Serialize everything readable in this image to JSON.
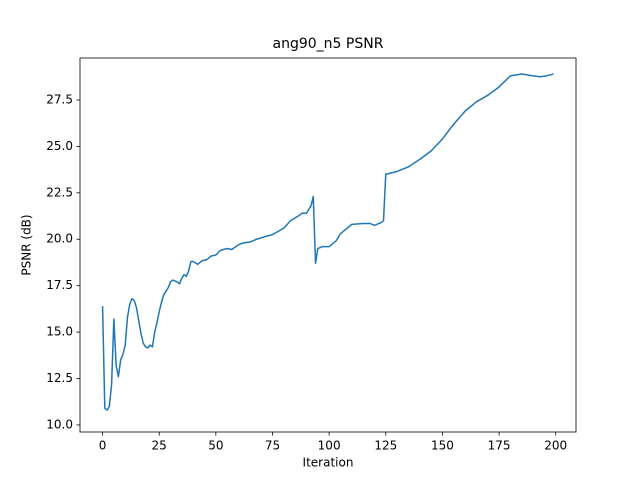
{
  "chart_data": {
    "type": "line",
    "title": "ang90_n5 PSNR",
    "x_label": "Iteration",
    "y_label": "PSNR (dB)",
    "x": [
      0,
      1,
      2,
      3,
      4,
      5,
      6,
      7,
      8,
      9,
      10,
      11,
      12,
      13,
      14,
      15,
      16,
      17,
      18,
      19,
      20,
      21,
      22,
      23,
      24,
      25,
      26,
      27,
      28,
      29,
      30,
      31,
      32,
      33,
      34,
      35,
      36,
      37,
      38,
      39,
      40,
      42,
      44,
      46,
      48,
      50,
      52,
      55,
      57,
      60,
      62,
      65,
      68,
      72,
      75,
      80,
      83,
      87,
      88,
      90,
      92,
      93,
      94,
      95,
      97,
      100,
      103,
      105,
      107,
      110,
      115,
      118,
      120,
      123,
      124,
      125,
      130,
      135,
      140,
      145,
      150,
      155,
      160,
      165,
      170,
      175,
      180,
      185,
      190,
      193,
      196,
      199
    ],
    "series": [
      {
        "name": "PSNR",
        "color": "#1f77b4",
        "values": [
          16.4,
          10.9,
          10.8,
          11.0,
          12.2,
          15.7,
          13.2,
          12.6,
          13.5,
          13.8,
          14.3,
          15.8,
          16.5,
          16.8,
          16.7,
          16.3,
          15.6,
          14.9,
          14.4,
          14.2,
          14.15,
          14.3,
          14.2,
          15.0,
          15.5,
          16.1,
          16.6,
          17.0,
          17.2,
          17.4,
          17.7,
          17.8,
          17.75,
          17.7,
          17.6,
          17.9,
          18.1,
          18.0,
          18.3,
          18.8,
          18.8,
          18.65,
          18.85,
          18.9,
          19.1,
          19.15,
          19.4,
          19.5,
          19.45,
          19.7,
          19.8,
          19.85,
          20.0,
          20.15,
          20.25,
          20.6,
          21.0,
          21.3,
          21.4,
          21.4,
          21.8,
          22.3,
          18.7,
          19.5,
          19.6,
          19.6,
          19.9,
          20.3,
          20.5,
          20.8,
          20.85,
          20.85,
          20.75,
          20.9,
          21.0,
          23.5,
          23.65,
          23.9,
          24.3,
          24.75,
          25.4,
          26.2,
          26.9,
          27.4,
          27.75,
          28.2,
          28.8,
          28.9,
          28.8,
          28.75,
          28.8,
          28.9
        ]
      }
    ],
    "xlim": [
      -9.95,
      208.95
    ],
    "xticks": [
      0,
      25,
      50,
      75,
      100,
      125,
      150,
      175,
      200
    ],
    "ylim": [
      9.62,
      29.76
    ],
    "yticks": [
      {
        "value": 10,
        "label": "10.0"
      },
      12.5,
      {
        "value": 15,
        "label": "15.0"
      },
      17.5,
      {
        "value": 20,
        "label": "20.0"
      },
      22.5,
      {
        "value": 25,
        "label": "25.0"
      },
      27.5
    ],
    "grid": false
  }
}
